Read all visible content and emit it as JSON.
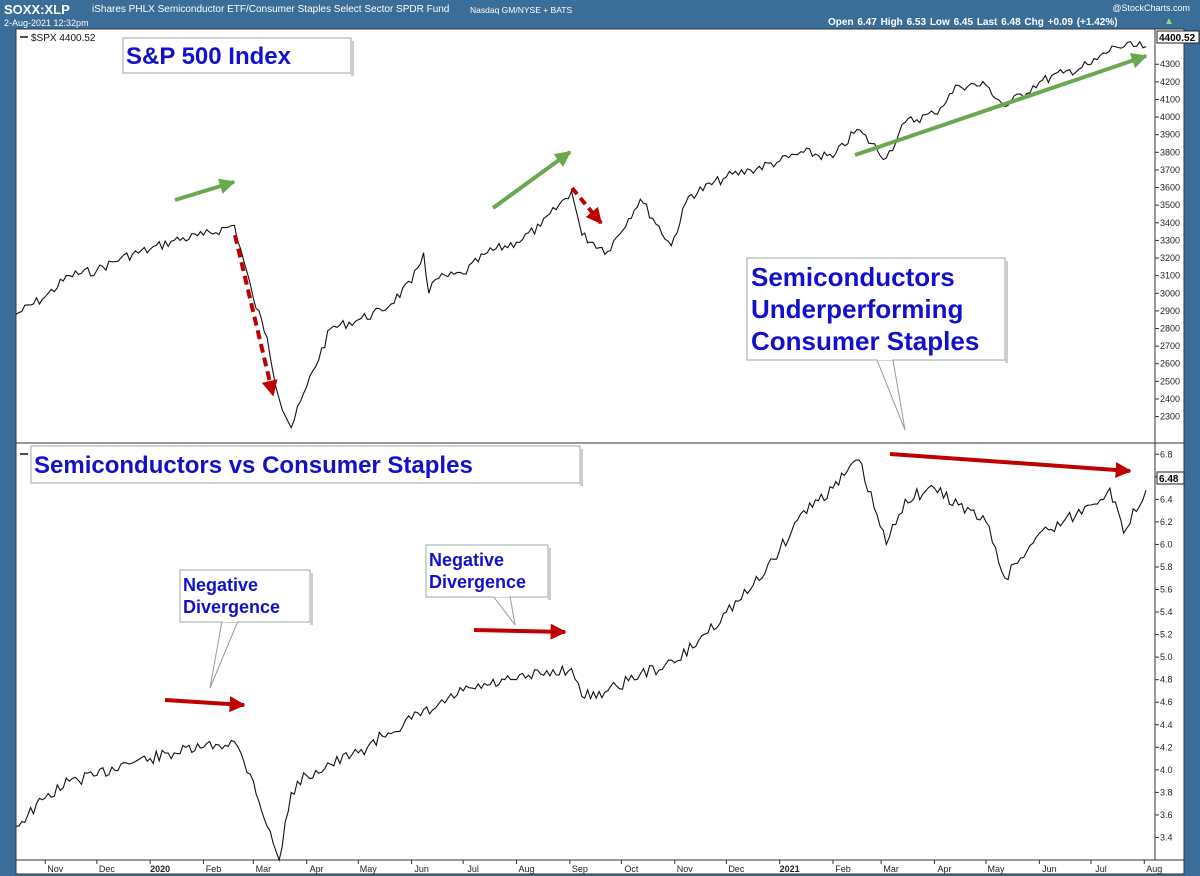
{
  "header": {
    "symbol": "SOXX:XLP",
    "description": "iShares PHLX Semiconductor ETF/Consumer Staples Select Sector SPDR Fund",
    "exchange": "Nasdaq GM/NYSE + BATS",
    "timestamp": "2-Aug-2021 12:32pm",
    "brand": "@StockCharts.com",
    "ohlc": "Open 6.47  High 6.53  Low 6.45  Last 6.48  Chg +0.09 (+1.42%)",
    "chg_arrow": "▲"
  },
  "colors": {
    "frame": "#3a6d98",
    "line": "#111111",
    "green_arrow": "#6aa84f",
    "red_arrow": "#c00000",
    "annotation_text": "#1111cc"
  },
  "chart_data": [
    {
      "type": "line",
      "legend": "$SPX 4400.52",
      "last_value_label": "4400.52",
      "annotation_title": "S&P 500 Index",
      "ylim": [
        2150,
        4500
      ],
      "yticks": [
        2300,
        2400,
        2500,
        2600,
        2700,
        2800,
        2900,
        3000,
        3100,
        3200,
        3300,
        3400,
        3500,
        3600,
        3700,
        3800,
        3900,
        4000,
        4100,
        4200,
        4300
      ],
      "x": [
        "2019-10-15",
        "2019-11-01",
        "2019-11-15",
        "2019-12-01",
        "2019-12-15",
        "2020-01-01",
        "2020-01-15",
        "2020-02-01",
        "2020-02-19",
        "2020-03-01",
        "2020-03-09",
        "2020-03-16",
        "2020-03-23",
        "2020-04-01",
        "2020-04-15",
        "2020-05-01",
        "2020-05-15",
        "2020-06-01",
        "2020-06-08",
        "2020-06-11",
        "2020-06-15",
        "2020-07-01",
        "2020-07-15",
        "2020-08-01",
        "2020-08-15",
        "2020-09-02",
        "2020-09-08",
        "2020-09-23",
        "2020-10-12",
        "2020-10-30",
        "2020-11-09",
        "2020-12-01",
        "2020-12-15",
        "2021-01-01",
        "2021-01-15",
        "2021-02-01",
        "2021-02-15",
        "2021-03-04",
        "2021-03-15",
        "2021-04-01",
        "2021-04-15",
        "2021-05-01",
        "2021-05-12",
        "2021-06-01",
        "2021-06-15",
        "2021-07-01",
        "2021-07-15",
        "2021-08-02"
      ],
      "values": [
        2880,
        2980,
        3100,
        3130,
        3200,
        3250,
        3300,
        3330,
        3386,
        2970,
        2750,
        2400,
        2237,
        2470,
        2800,
        2850,
        2900,
        3060,
        3230,
        3000,
        3080,
        3110,
        3230,
        3290,
        3380,
        3580,
        3330,
        3237,
        3534,
        3270,
        3550,
        3660,
        3700,
        3750,
        3800,
        3770,
        3930,
        3768,
        3970,
        4020,
        4180,
        4180,
        4060,
        4200,
        4250,
        4300,
        4400,
        4400
      ],
      "x_axis_labels": [
        "Nov",
        "Dec",
        "2020",
        "Feb",
        "Mar",
        "Apr",
        "May",
        "Jun",
        "Jul",
        "Aug",
        "Sep",
        "Oct",
        "Nov",
        "Dec",
        "2021",
        "Feb",
        "Mar",
        "Apr",
        "May",
        "Jun",
        "Jul",
        "Aug"
      ],
      "annotations": [
        "Semiconductors",
        "Underperforming",
        "Consumer Staples"
      ]
    },
    {
      "type": "line",
      "last_value_label": "6.48",
      "annotation_title": "Semiconductors vs Consumer Staples",
      "ylim": [
        3.2,
        6.9
      ],
      "yticks": [
        3.4,
        3.6,
        3.8,
        4.0,
        4.2,
        4.4,
        4.6,
        4.8,
        5.0,
        5.2,
        5.4,
        5.6,
        5.8,
        6.0,
        6.2,
        6.4,
        6.6,
        6.8
      ],
      "x": [
        "2019-10-15",
        "2019-11-01",
        "2019-11-15",
        "2019-12-01",
        "2019-12-15",
        "2020-01-01",
        "2020-01-15",
        "2020-02-01",
        "2020-02-19",
        "2020-03-01",
        "2020-03-09",
        "2020-03-16",
        "2020-03-23",
        "2020-04-01",
        "2020-04-15",
        "2020-05-01",
        "2020-05-15",
        "2020-06-01",
        "2020-06-15",
        "2020-07-01",
        "2020-07-15",
        "2020-08-01",
        "2020-08-15",
        "2020-09-02",
        "2020-09-08",
        "2020-09-23",
        "2020-10-12",
        "2020-11-01",
        "2020-11-15",
        "2020-12-01",
        "2020-12-15",
        "2021-01-01",
        "2021-01-15",
        "2021-02-01",
        "2021-02-16",
        "2021-03-04",
        "2021-03-15",
        "2021-04-01",
        "2021-04-15",
        "2021-05-01",
        "2021-05-12",
        "2021-06-01",
        "2021-06-15",
        "2021-07-01",
        "2021-07-12",
        "2021-07-20",
        "2021-08-02"
      ],
      "values": [
        3.5,
        3.75,
        3.9,
        3.95,
        4.05,
        4.1,
        4.15,
        4.2,
        4.25,
        3.9,
        3.5,
        3.2,
        3.8,
        3.95,
        4.05,
        4.15,
        4.3,
        4.45,
        4.55,
        4.7,
        4.75,
        4.8,
        4.85,
        4.9,
        4.65,
        4.7,
        4.85,
        4.95,
        5.15,
        5.4,
        5.6,
        5.95,
        6.3,
        6.5,
        6.75,
        6.0,
        6.4,
        6.5,
        6.35,
        6.2,
        5.7,
        6.1,
        6.2,
        6.35,
        6.5,
        6.1,
        6.48
      ],
      "annotations": [
        "Negative",
        "Divergence"
      ]
    }
  ]
}
